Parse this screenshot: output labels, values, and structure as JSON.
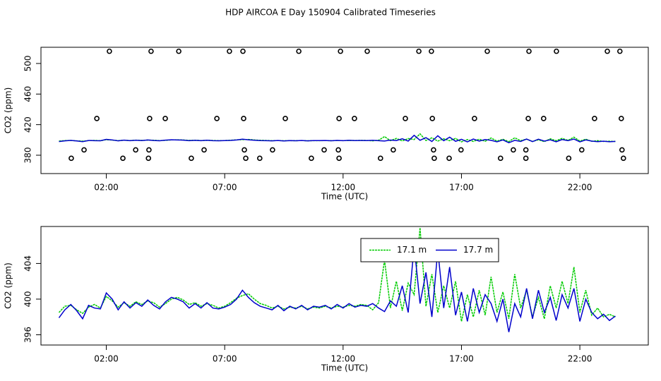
{
  "title": "HDP AIRCOA E  Day 150904  Calibrated Timeseries",
  "chart_data": [
    {
      "type": "line",
      "xlabel": "Time (UTC)",
      "ylabel": "CO2 (ppm)",
      "xlim": [
        -0.76,
        24.89
      ],
      "ylim": [
        356,
        521.2
      ],
      "xticks": [
        {
          "value": 2,
          "label": "02:00"
        },
        {
          "value": 7,
          "label": "07:00"
        },
        {
          "value": 12,
          "label": "12:00"
        },
        {
          "value": 17,
          "label": "17:00"
        },
        {
          "value": 22,
          "label": "22:00"
        }
      ],
      "yticks": [
        380,
        420,
        460,
        500
      ],
      "series": [
        {
          "type": "scatter",
          "color": "#000000",
          "x": [
            2.13,
            3.89,
            5.06,
            7.2,
            7.77,
            10.13,
            11.89,
            13.02,
            15.2,
            15.73,
            18.09,
            19.85,
            21.01,
            23.16,
            23.69,
            1.6,
            3.83,
            4.49,
            6.67,
            7.8,
            9.56,
            11.83,
            12.48,
            14.63,
            15.77,
            17.55,
            19.82,
            20.47,
            22.62,
            23.75,
            1.06,
            3.24,
            3.8,
            6.13,
            7.83,
            9.02,
            11.2,
            11.8,
            14.12,
            15.82,
            16.98,
            19.19,
            19.72,
            22.08,
            23.78,
            0.52,
            2.7,
            3.78,
            5.59,
            7.89,
            8.48,
            10.66,
            11.83,
            13.58,
            15.85,
            16.48,
            18.65,
            19.72,
            21.53,
            23.84
          ],
          "values": [
            516,
            516,
            516,
            516,
            516,
            516,
            516,
            516,
            516,
            516,
            516,
            516,
            516,
            516,
            516,
            428,
            428,
            428,
            428,
            428,
            428,
            428,
            428,
            428,
            428,
            428,
            428,
            428,
            428,
            428,
            387,
            387,
            387,
            387,
            387,
            387,
            387,
            387,
            387,
            387,
            387,
            387,
            387,
            387,
            387,
            376,
            376,
            376,
            376,
            376,
            376,
            376,
            376,
            376,
            376,
            376,
            376,
            376,
            376,
            376
          ]
        },
        {
          "color": "#00cc00",
          "dash": "3,1",
          "x": [
            0,
            0.25,
            0.5,
            0.75,
            1,
            1.25,
            1.5,
            1.75,
            2,
            2.25,
            2.5,
            2.75,
            3,
            3.25,
            3.5,
            3.75,
            4,
            4.25,
            4.5,
            4.75,
            5,
            5.25,
            5.5,
            5.75,
            6,
            6.25,
            6.5,
            6.75,
            7,
            7.25,
            7.5,
            7.75,
            8,
            8.25,
            8.5,
            8.75,
            9,
            9.25,
            9.5,
            9.75,
            10,
            10.25,
            10.5,
            10.75,
            11,
            11.25,
            11.5,
            11.75,
            12,
            12.25,
            12.5,
            12.75,
            13,
            13.25,
            13.5,
            13.75,
            14,
            14.25,
            14.5,
            14.75,
            15,
            15.25,
            15.5,
            15.75,
            16,
            16.25,
            16.5,
            16.75,
            17,
            17.25,
            17.5,
            17.75,
            18,
            18.25,
            18.5,
            18.75,
            19,
            19.25,
            19.5,
            19.75,
            20,
            20.25,
            20.5,
            20.75,
            21,
            21.25,
            21.5,
            21.75,
            22,
            22.25,
            22.5,
            22.75,
            23,
            23.25,
            23.5
          ],
          "values": [
            398.5,
            399.2,
            399.3,
            398.8,
            398.4,
            399.1,
            399.4,
            399.0,
            400.3,
            399.8,
            399.1,
            399.6,
            399.2,
            399.7,
            399.4,
            399.8,
            399.6,
            399.1,
            399.5,
            400.0,
            400.2,
            399.9,
            399.4,
            399.6,
            399.2,
            399.5,
            399.3,
            399.0,
            399.2,
            399.6,
            400.1,
            400.4,
            400.6,
            400.0,
            399.5,
            399.3,
            399.0,
            399.2,
            398.9,
            399.1,
            399.0,
            399.2,
            398.9,
            399.1,
            399.0,
            399.2,
            399.0,
            399.2,
            399.1,
            399.3,
            399.2,
            399.4,
            399.3,
            398.8,
            399.6,
            404.4,
            399.0,
            402.0,
            398.7,
            401.8,
            400.5,
            408.0,
            399.2,
            402.8,
            398.5,
            401.5,
            399.0,
            402.0,
            397.5,
            400.5,
            398.0,
            401.0,
            398.2,
            402.5,
            398.5,
            400.8,
            397.8,
            402.8,
            399.0,
            401.0,
            398.0,
            400.2,
            397.8,
            401.5,
            399.0,
            402.0,
            399.5,
            403.6,
            398.5,
            401.0,
            398.2,
            399.0,
            398.0,
            398.3,
            398.0
          ]
        },
        {
          "color": "#0000cc",
          "x": [
            0,
            0.25,
            0.5,
            0.75,
            1,
            1.25,
            1.5,
            1.75,
            2,
            2.25,
            2.5,
            2.75,
            3,
            3.25,
            3.5,
            3.75,
            4,
            4.25,
            4.5,
            4.75,
            5,
            5.25,
            5.5,
            5.75,
            6,
            6.25,
            6.5,
            6.75,
            7,
            7.25,
            7.5,
            7.75,
            8,
            8.25,
            8.5,
            8.75,
            9,
            9.25,
            9.5,
            9.75,
            10,
            10.25,
            10.5,
            10.75,
            11,
            11.25,
            11.5,
            11.75,
            12,
            12.25,
            12.5,
            12.75,
            13,
            13.25,
            13.5,
            13.75,
            14,
            14.25,
            14.5,
            14.75,
            15,
            15.25,
            15.5,
            15.75,
            16,
            16.25,
            16.5,
            16.75,
            17,
            17.25,
            17.5,
            17.75,
            18,
            18.25,
            18.5,
            18.75,
            19,
            19.25,
            19.5,
            19.75,
            20,
            20.25,
            20.5,
            20.75,
            21,
            21.25,
            21.5,
            21.75,
            22,
            22.25,
            22.5,
            22.75,
            23,
            23.25,
            23.5
          ],
          "values": [
            397.9,
            398.8,
            399.4,
            398.7,
            397.8,
            399.3,
            399.0,
            398.9,
            400.7,
            400.0,
            398.8,
            399.7,
            399.0,
            399.6,
            399.2,
            399.9,
            399.3,
            398.9,
            399.7,
            400.2,
            400.0,
            399.7,
            399.0,
            399.5,
            399.0,
            399.6,
            399.0,
            398.9,
            399.1,
            399.4,
            400.0,
            401.0,
            400.2,
            399.6,
            399.2,
            399.0,
            398.8,
            399.3,
            398.7,
            399.2,
            398.9,
            399.3,
            398.8,
            399.2,
            399.1,
            399.3,
            398.9,
            399.4,
            399.0,
            399.5,
            399.1,
            399.3,
            399.2,
            399.5,
            399.0,
            398.6,
            399.8,
            399.2,
            401.5,
            398.5,
            406.0,
            399.5,
            403.0,
            398.0,
            405.5,
            399.0,
            403.6,
            398.2,
            400.8,
            397.5,
            401.2,
            398.5,
            400.5,
            399.5,
            397.5,
            400.0,
            396.3,
            399.5,
            398.0,
            401.2,
            397.8,
            401.0,
            398.5,
            400.2,
            397.6,
            400.5,
            399.0,
            401.2,
            397.5,
            400.0,
            398.5,
            397.8,
            398.3,
            397.6,
            398.1
          ]
        }
      ]
    },
    {
      "type": "line",
      "xlabel": "Time (UTC)",
      "ylabel": "CO2 (ppm)",
      "legend": "top",
      "xlim": [
        -0.76,
        24.89
      ],
      "ylim": [
        394.85,
        408.15
      ],
      "xticks": [
        {
          "value": 2,
          "label": "02:00"
        },
        {
          "value": 7,
          "label": "07:00"
        },
        {
          "value": 12,
          "label": "12:00"
        },
        {
          "value": 17,
          "label": "17:00"
        },
        {
          "value": 22,
          "label": "22:00"
        }
      ],
      "yticks": [
        396,
        400,
        404
      ],
      "series": [
        {
          "name": "17.1 m",
          "color": "#00cc00",
          "dash": "3,1",
          "x": [
            0,
            0.25,
            0.5,
            0.75,
            1,
            1.25,
            1.5,
            1.75,
            2,
            2.25,
            2.5,
            2.75,
            3,
            3.25,
            3.5,
            3.75,
            4,
            4.25,
            4.5,
            4.75,
            5,
            5.25,
            5.5,
            5.75,
            6,
            6.25,
            6.5,
            6.75,
            7,
            7.25,
            7.5,
            7.75,
            8,
            8.25,
            8.5,
            8.75,
            9,
            9.25,
            9.5,
            9.75,
            10,
            10.25,
            10.5,
            10.75,
            11,
            11.25,
            11.5,
            11.75,
            12,
            12.25,
            12.5,
            12.75,
            13,
            13.25,
            13.5,
            13.75,
            14,
            14.25,
            14.5,
            14.75,
            15,
            15.25,
            15.5,
            15.75,
            16,
            16.25,
            16.5,
            16.75,
            17,
            17.25,
            17.5,
            17.75,
            18,
            18.25,
            18.5,
            18.75,
            19,
            19.25,
            19.5,
            19.75,
            20,
            20.25,
            20.5,
            20.75,
            21,
            21.25,
            21.5,
            21.75,
            22,
            22.25,
            22.5,
            22.75,
            23,
            23.25,
            23.5
          ],
          "values": [
            398.5,
            399.2,
            399.3,
            398.8,
            398.4,
            399.1,
            399.4,
            399.0,
            400.3,
            399.8,
            399.1,
            399.6,
            399.2,
            399.7,
            399.4,
            399.8,
            399.6,
            399.1,
            399.5,
            400.0,
            400.2,
            399.9,
            399.4,
            399.6,
            399.2,
            399.5,
            399.3,
            399.0,
            399.2,
            399.6,
            400.1,
            400.4,
            400.6,
            400.0,
            399.5,
            399.3,
            399.0,
            399.2,
            398.9,
            399.1,
            399.0,
            399.2,
            398.9,
            399.1,
            399.0,
            399.2,
            399.0,
            399.2,
            399.1,
            399.3,
            399.2,
            399.4,
            399.3,
            398.8,
            399.6,
            404.4,
            399.0,
            402.0,
            398.7,
            401.8,
            400.5,
            408.0,
            399.2,
            402.8,
            398.5,
            401.5,
            399.0,
            402.0,
            397.5,
            400.5,
            398.0,
            401.0,
            398.2,
            402.5,
            398.5,
            400.8,
            397.8,
            402.8,
            399.0,
            401.0,
            398.0,
            400.2,
            397.8,
            401.5,
            399.0,
            402.0,
            399.5,
            403.6,
            398.5,
            401.0,
            398.2,
            399.0,
            398.0,
            398.3,
            398.0
          ]
        },
        {
          "name": "17.7 m",
          "color": "#0000cc",
          "x": [
            0,
            0.25,
            0.5,
            0.75,
            1,
            1.25,
            1.5,
            1.75,
            2,
            2.25,
            2.5,
            2.75,
            3,
            3.25,
            3.5,
            3.75,
            4,
            4.25,
            4.5,
            4.75,
            5,
            5.25,
            5.5,
            5.75,
            6,
            6.25,
            6.5,
            6.75,
            7,
            7.25,
            7.5,
            7.75,
            8,
            8.25,
            8.5,
            8.75,
            9,
            9.25,
            9.5,
            9.75,
            10,
            10.25,
            10.5,
            10.75,
            11,
            11.25,
            11.5,
            11.75,
            12,
            12.25,
            12.5,
            12.75,
            13,
            13.25,
            13.5,
            13.75,
            14,
            14.25,
            14.5,
            14.75,
            15,
            15.25,
            15.5,
            15.75,
            16,
            16.25,
            16.5,
            16.75,
            17,
            17.25,
            17.5,
            17.75,
            18,
            18.25,
            18.5,
            18.75,
            19,
            19.25,
            19.5,
            19.75,
            20,
            20.25,
            20.5,
            20.75,
            21,
            21.25,
            21.5,
            21.75,
            22,
            22.25,
            22.5,
            22.75,
            23,
            23.25,
            23.5
          ],
          "values": [
            397.9,
            398.8,
            399.4,
            398.7,
            397.8,
            399.3,
            399.0,
            398.9,
            400.7,
            400.0,
            398.8,
            399.7,
            399.0,
            399.6,
            399.2,
            399.9,
            399.3,
            398.9,
            399.7,
            400.2,
            400.0,
            399.7,
            399.0,
            399.5,
            399.0,
            399.6,
            399.0,
            398.9,
            399.1,
            399.4,
            400.0,
            401.0,
            400.2,
            399.6,
            399.2,
            399.0,
            398.8,
            399.3,
            398.7,
            399.2,
            398.9,
            399.3,
            398.8,
            399.2,
            399.1,
            399.3,
            398.9,
            399.4,
            399.0,
            399.5,
            399.1,
            399.3,
            399.2,
            399.5,
            399.0,
            398.6,
            399.8,
            399.2,
            401.5,
            398.5,
            406.0,
            399.5,
            403.0,
            398.0,
            405.5,
            399.0,
            403.6,
            398.2,
            400.8,
            397.5,
            401.2,
            398.5,
            400.5,
            399.5,
            397.5,
            400.0,
            396.3,
            399.5,
            398.0,
            401.2,
            397.8,
            401.0,
            398.5,
            400.2,
            397.6,
            400.5,
            399.0,
            401.2,
            397.5,
            400.0,
            398.5,
            397.8,
            398.3,
            397.6,
            398.1
          ]
        }
      ]
    }
  ]
}
